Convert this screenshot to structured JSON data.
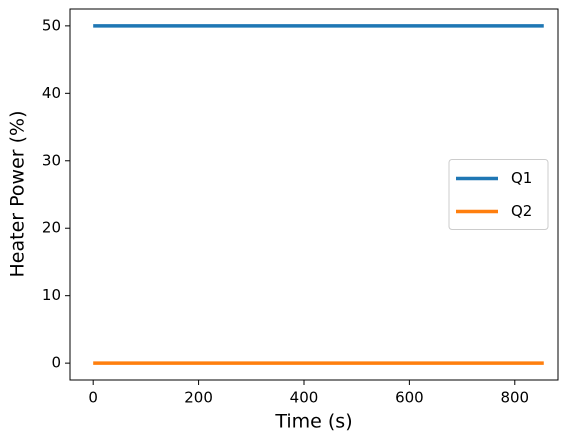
{
  "chart_data": {
    "type": "line",
    "x": [
      0,
      855
    ],
    "series": [
      {
        "name": "Q1",
        "color": "#1f77b4",
        "values": [
          50,
          50
        ]
      },
      {
        "name": "Q2",
        "color": "#ff7f0e",
        "values": [
          0,
          0
        ]
      }
    ],
    "xlabel": "Time (s)",
    "ylabel": "Heater Power (%)",
    "xlim": [
      -44,
      882
    ],
    "ylim": [
      -2.5,
      52.5
    ],
    "xticks": [
      0,
      200,
      400,
      600,
      800
    ],
    "yticks": [
      0,
      10,
      20,
      30,
      40,
      50
    ],
    "grid": false,
    "legend": "center right"
  }
}
